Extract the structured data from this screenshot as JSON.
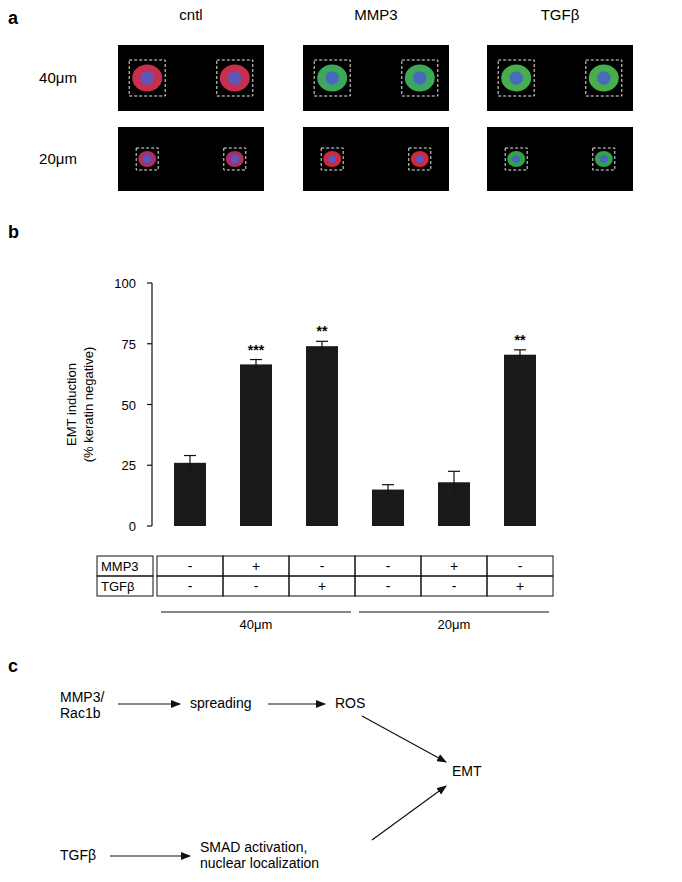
{
  "chart_data": {
    "type": "bar",
    "label": "b",
    "ylabel": [
      "EMT induction",
      "(% keratin negative)"
    ],
    "categories": [
      null,
      null,
      null,
      null,
      null,
      null
    ],
    "values": [
      26,
      66.5,
      74,
      15,
      18,
      70.5
    ],
    "errors": [
      3,
      2,
      2,
      2,
      4.5,
      2
    ],
    "significance": [
      null,
      "***",
      "**",
      null,
      null,
      "**"
    ],
    "color": "#1a1a1a",
    "ylim": [
      0,
      100
    ],
    "yticks": [
      0,
      25,
      50,
      75,
      100
    ],
    "grid": false,
    "conditions": [
      {
        "label": "MMP3",
        "values": [
          "-",
          "+",
          "-",
          "-",
          "+",
          "-"
        ]
      },
      {
        "label": "TGFβ",
        "values": [
          "-",
          "-",
          "+",
          "-",
          "-",
          "+"
        ]
      }
    ],
    "groups": [
      "40μm",
      "20μm"
    ]
  },
  "panel_a": {
    "label": "a",
    "columns": [
      "cntl",
      "MMP3",
      "TGFβ"
    ],
    "rows": [
      {
        "label": "40μm",
        "colors": [
          "#c4304e",
          "#3ea85a",
          "#48ad4c"
        ]
      },
      {
        "label": "20μm",
        "colors": [
          "#a83068",
          "#d0283c",
          "#2fa24a"
        ]
      }
    ]
  },
  "panel_c": {
    "label": "c",
    "nodes": [
      [
        "MMP3/",
        "Rac1b"
      ],
      [
        "spreading"
      ],
      [
        "ROS"
      ],
      [
        "EMT"
      ],
      [
        "TGFβ"
      ],
      [
        "SMAD activation,",
        "nuclear localization"
      ]
    ]
  }
}
